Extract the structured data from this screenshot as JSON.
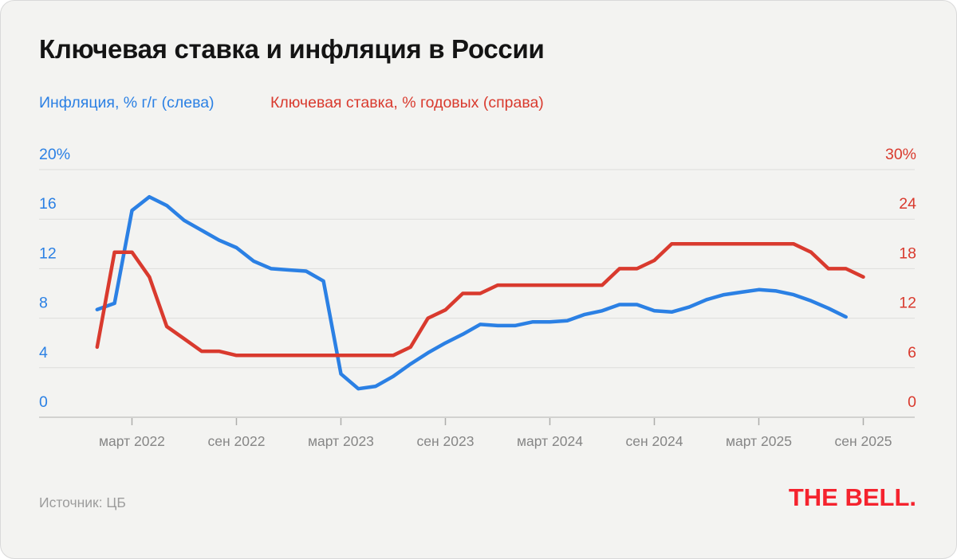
{
  "header": {
    "title": "Ключевая ставка и инфляция в России"
  },
  "legend": {
    "inflation_label": "Инфляция, % г/г (слева)",
    "rate_label": "Ключевая ставка, % годовых (справа)"
  },
  "footer": {
    "source": "Источник: ЦБ",
    "logo_text": "THE BELL."
  },
  "colors": {
    "inflation_blue": "#2b80e4",
    "rate_red": "#d93a2e",
    "logo_red": "#f5232e",
    "x_label_gray": "#868686",
    "grid_line": "#dddddb",
    "axis_line": "#c7c7c5",
    "tick_mark": "#adadab",
    "background": "#f3f3f1",
    "title_color": "#141414"
  },
  "chart_data": {
    "type": "line",
    "title": "Ключевая ставка и инфляция в России",
    "x_unit": "month",
    "grid": true,
    "legend_position": "top-left",
    "months": [
      "2022-01",
      "2022-02",
      "2022-03",
      "2022-04",
      "2022-05",
      "2022-06",
      "2022-07",
      "2022-08",
      "2022-09",
      "2022-10",
      "2022-11",
      "2022-12",
      "2023-01",
      "2023-02",
      "2023-03",
      "2023-04",
      "2023-05",
      "2023-06",
      "2023-07",
      "2023-08",
      "2023-09",
      "2023-10",
      "2023-11",
      "2023-12",
      "2024-01",
      "2024-02",
      "2024-03",
      "2024-04",
      "2024-05",
      "2024-06",
      "2024-07",
      "2024-08",
      "2024-09",
      "2024-10",
      "2024-11",
      "2024-12",
      "2025-01",
      "2025-02",
      "2025-03",
      "2025-04",
      "2025-05",
      "2025-06",
      "2025-07",
      "2025-08",
      "2025-09"
    ],
    "x_ticks": [
      {
        "label": "март 2022",
        "month_index": 2
      },
      {
        "label": "сен 2022",
        "month_index": 8
      },
      {
        "label": "март 2023",
        "month_index": 14
      },
      {
        "label": "сен 2023",
        "month_index": 20
      },
      {
        "label": "март 2024",
        "month_index": 26
      },
      {
        "label": "сен 2024",
        "month_index": 32
      },
      {
        "label": "март 2025",
        "month_index": 38
      },
      {
        "label": "сен 2025",
        "month_index": 44
      }
    ],
    "left_axis": {
      "range": [
        0,
        20
      ],
      "ticks": [
        {
          "v": 0,
          "label": "0"
        },
        {
          "v": 4,
          "label": "4"
        },
        {
          "v": 8,
          "label": "8"
        },
        {
          "v": 12,
          "label": "12"
        },
        {
          "v": 16,
          "label": "16"
        },
        {
          "v": 20,
          "label": "20%"
        }
      ]
    },
    "right_axis": {
      "range": [
        0,
        30
      ],
      "ticks": [
        {
          "v": 0,
          "label": "0"
        },
        {
          "v": 6,
          "label": "6"
        },
        {
          "v": 12,
          "label": "12"
        },
        {
          "v": 18,
          "label": "18"
        },
        {
          "v": 24,
          "label": "24"
        },
        {
          "v": 30,
          "label": "30%"
        }
      ]
    },
    "series": [
      {
        "name": "Инфляция, % г/г (слева)",
        "axis": "left",
        "color": "#2b80e4",
        "values": [
          8.7,
          9.2,
          16.7,
          17.8,
          17.1,
          15.9,
          15.1,
          14.3,
          13.7,
          12.6,
          12.0,
          11.9,
          11.8,
          11.0,
          3.5,
          2.3,
          2.5,
          3.3,
          4.3,
          5.2,
          6.0,
          6.7,
          7.5,
          7.4,
          7.4,
          7.7,
          7.7,
          7.8,
          8.3,
          8.6,
          9.1,
          9.1,
          8.6,
          8.5,
          8.9,
          9.5,
          9.9,
          10.1,
          10.3,
          10.2,
          9.9,
          9.4,
          8.8,
          8.1,
          null
        ]
      },
      {
        "name": "Ключевая ставка, % годовых (справа)",
        "axis": "right",
        "color": "#d93a2e",
        "values": [
          8.5,
          20,
          20,
          17,
          11,
          9.5,
          8,
          8,
          7.5,
          7.5,
          7.5,
          7.5,
          7.5,
          7.5,
          7.5,
          7.5,
          7.5,
          7.5,
          8.5,
          12,
          13,
          15,
          15,
          16,
          16,
          16,
          16,
          16,
          16,
          16,
          18,
          18,
          19,
          21,
          21,
          21,
          21,
          21,
          21,
          21,
          21,
          20,
          18,
          18,
          17
        ]
      }
    ]
  }
}
